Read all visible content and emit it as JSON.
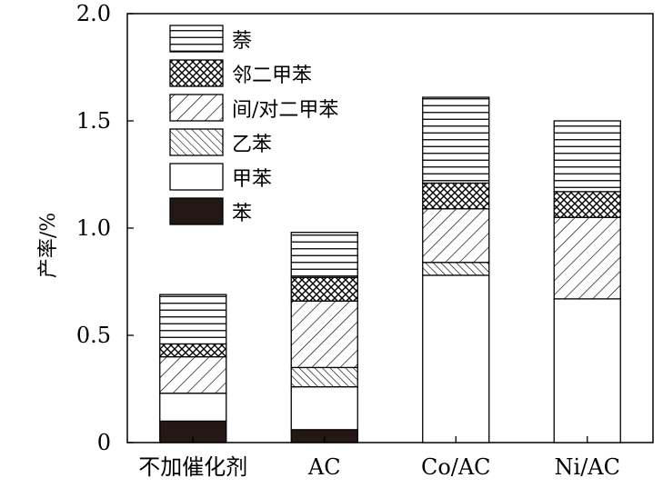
{
  "chart_data": {
    "type": "bar",
    "stacked": true,
    "categories": [
      "不加催化剂",
      "AC",
      "Co/AC",
      "Ni/AC"
    ],
    "series": [
      {
        "name": "苯",
        "pattern": "solid",
        "values": [
          0.1,
          0.06,
          0.0,
          0.0
        ]
      },
      {
        "name": "甲苯",
        "pattern": "white",
        "values": [
          0.13,
          0.2,
          0.78,
          0.67
        ]
      },
      {
        "name": "乙苯",
        "pattern": "diag-dense",
        "values": [
          0.0,
          0.09,
          0.06,
          0.0
        ]
      },
      {
        "name": "间/对二甲苯",
        "pattern": "diag-sparse",
        "values": [
          0.17,
          0.31,
          0.25,
          0.38
        ]
      },
      {
        "name": "邻二甲苯",
        "pattern": "crosshatch",
        "values": [
          0.06,
          0.11,
          0.12,
          0.12
        ]
      },
      {
        "name": "萘",
        "pattern": "horizontal",
        "values": [
          0.23,
          0.21,
          0.4,
          0.33
        ]
      }
    ],
    "legend_order": [
      "萘",
      "邻二甲苯",
      "间/对二甲苯",
      "乙苯",
      "甲苯",
      "苯"
    ],
    "legend_position": "top-left",
    "xlabel": "",
    "ylabel": "产率/%",
    "ylim": [
      0,
      2.0
    ],
    "yticks": [
      0,
      0.5,
      1.0,
      1.5,
      2.0
    ],
    "ytick_labels": [
      "0",
      "0.5",
      "1.0",
      "1.5",
      "2.0"
    ],
    "grid": false,
    "colors": {
      "ink": "#000000",
      "fill": "#ffffff",
      "solid": "#231816"
    }
  }
}
